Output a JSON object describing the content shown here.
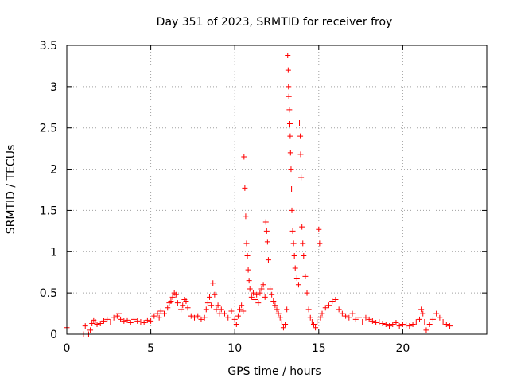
{
  "chart_data": {
    "type": "scatter",
    "title": "Day 351 of 2023, SRMTID for receiver froy",
    "xlabel": "GPS time / hours",
    "ylabel": "SRMTID / TECUs",
    "xlim": [
      0,
      25
    ],
    "ylim": [
      0,
      3.5
    ],
    "x_ticks": [
      0,
      5,
      10,
      15,
      20
    ],
    "x_tick_labels": [
      "0",
      "5",
      "10",
      "15",
      "20"
    ],
    "y_ticks": [
      0,
      0.5,
      1,
      1.5,
      2,
      2.5,
      3,
      3.5
    ],
    "y_tick_labels": [
      "0",
      "0.5",
      "1",
      "1.5",
      "2",
      "2.5",
      "3",
      "3.5"
    ],
    "grid": true,
    "marker": "+",
    "color": "#ff0000",
    "series": [
      {
        "name": "SRMTID",
        "points": [
          [
            0.0,
            0.08
          ],
          [
            1.0,
            0.0
          ],
          [
            1.1,
            0.1
          ],
          [
            1.3,
            0.0
          ],
          [
            1.4,
            0.05
          ],
          [
            1.5,
            0.13
          ],
          [
            1.6,
            0.17
          ],
          [
            1.7,
            0.15
          ],
          [
            1.8,
            0.12
          ],
          [
            2.0,
            0.13
          ],
          [
            2.2,
            0.16
          ],
          [
            2.4,
            0.18
          ],
          [
            2.6,
            0.15
          ],
          [
            2.8,
            0.2
          ],
          [
            3.0,
            0.22
          ],
          [
            3.1,
            0.25
          ],
          [
            3.2,
            0.18
          ],
          [
            3.4,
            0.16
          ],
          [
            3.6,
            0.17
          ],
          [
            3.8,
            0.14
          ],
          [
            4.0,
            0.18
          ],
          [
            4.2,
            0.16
          ],
          [
            4.4,
            0.15
          ],
          [
            4.6,
            0.14
          ],
          [
            4.8,
            0.17
          ],
          [
            5.0,
            0.16
          ],
          [
            5.2,
            0.22
          ],
          [
            5.4,
            0.25
          ],
          [
            5.5,
            0.2
          ],
          [
            5.6,
            0.28
          ],
          [
            5.8,
            0.25
          ],
          [
            6.0,
            0.32
          ],
          [
            6.1,
            0.38
          ],
          [
            6.2,
            0.4
          ],
          [
            6.3,
            0.45
          ],
          [
            6.4,
            0.5
          ],
          [
            6.5,
            0.48
          ],
          [
            6.6,
            0.38
          ],
          [
            6.8,
            0.3
          ],
          [
            6.9,
            0.35
          ],
          [
            7.0,
            0.42
          ],
          [
            7.1,
            0.4
          ],
          [
            7.2,
            0.32
          ],
          [
            7.4,
            0.22
          ],
          [
            7.6,
            0.2
          ],
          [
            7.8,
            0.22
          ],
          [
            8.0,
            0.18
          ],
          [
            8.2,
            0.2
          ],
          [
            8.3,
            0.3
          ],
          [
            8.4,
            0.38
          ],
          [
            8.5,
            0.45
          ],
          [
            8.6,
            0.35
          ],
          [
            8.7,
            0.62
          ],
          [
            8.8,
            0.48
          ],
          [
            8.9,
            0.3
          ],
          [
            9.0,
            0.35
          ],
          [
            9.1,
            0.25
          ],
          [
            9.2,
            0.3
          ],
          [
            9.4,
            0.25
          ],
          [
            9.6,
            0.2
          ],
          [
            9.8,
            0.28
          ],
          [
            10.0,
            0.18
          ],
          [
            10.1,
            0.12
          ],
          [
            10.2,
            0.22
          ],
          [
            10.3,
            0.3
          ],
          [
            10.4,
            0.35
          ],
          [
            10.5,
            0.28
          ],
          [
            10.55,
            2.15
          ],
          [
            10.6,
            1.77
          ],
          [
            10.65,
            1.43
          ],
          [
            10.7,
            1.1
          ],
          [
            10.75,
            0.95
          ],
          [
            10.8,
            0.78
          ],
          [
            10.85,
            0.65
          ],
          [
            10.9,
            0.55
          ],
          [
            11.0,
            0.45
          ],
          [
            11.1,
            0.5
          ],
          [
            11.2,
            0.42
          ],
          [
            11.3,
            0.48
          ],
          [
            11.4,
            0.38
          ],
          [
            11.5,
            0.5
          ],
          [
            11.6,
            0.55
          ],
          [
            11.7,
            0.6
          ],
          [
            11.8,
            0.45
          ],
          [
            11.85,
            1.36
          ],
          [
            11.9,
            1.25
          ],
          [
            11.95,
            1.12
          ],
          [
            12.0,
            0.9
          ],
          [
            12.1,
            0.55
          ],
          [
            12.2,
            0.48
          ],
          [
            12.3,
            0.4
          ],
          [
            12.4,
            0.35
          ],
          [
            12.5,
            0.3
          ],
          [
            12.6,
            0.25
          ],
          [
            12.7,
            0.2
          ],
          [
            12.8,
            0.15
          ],
          [
            12.9,
            0.08
          ],
          [
            13.0,
            0.12
          ],
          [
            13.1,
            0.3
          ],
          [
            13.15,
            3.38
          ],
          [
            13.18,
            3.2
          ],
          [
            13.2,
            3.0
          ],
          [
            13.22,
            2.88
          ],
          [
            13.25,
            2.72
          ],
          [
            13.28,
            2.55
          ],
          [
            13.3,
            2.4
          ],
          [
            13.32,
            2.2
          ],
          [
            13.35,
            2.0
          ],
          [
            13.38,
            1.76
          ],
          [
            13.4,
            1.5
          ],
          [
            13.45,
            1.25
          ],
          [
            13.5,
            1.1
          ],
          [
            13.55,
            0.95
          ],
          [
            13.6,
            0.8
          ],
          [
            13.7,
            0.68
          ],
          [
            13.8,
            0.6
          ],
          [
            13.85,
            2.56
          ],
          [
            13.9,
            2.4
          ],
          [
            13.92,
            2.18
          ],
          [
            13.95,
            1.9
          ],
          [
            14.0,
            1.3
          ],
          [
            14.05,
            1.1
          ],
          [
            14.1,
            0.95
          ],
          [
            14.2,
            0.7
          ],
          [
            14.3,
            0.5
          ],
          [
            14.4,
            0.3
          ],
          [
            14.5,
            0.2
          ],
          [
            14.6,
            0.15
          ],
          [
            14.7,
            0.12
          ],
          [
            14.8,
            0.08
          ],
          [
            14.9,
            0.15
          ],
          [
            15.0,
            1.27
          ],
          [
            15.05,
            1.1
          ],
          [
            15.1,
            0.2
          ],
          [
            15.2,
            0.25
          ],
          [
            15.4,
            0.32
          ],
          [
            15.6,
            0.35
          ],
          [
            15.8,
            0.4
          ],
          [
            16.0,
            0.42
          ],
          [
            16.2,
            0.3
          ],
          [
            16.4,
            0.25
          ],
          [
            16.6,
            0.22
          ],
          [
            16.8,
            0.2
          ],
          [
            17.0,
            0.25
          ],
          [
            17.2,
            0.18
          ],
          [
            17.4,
            0.2
          ],
          [
            17.6,
            0.15
          ],
          [
            17.8,
            0.2
          ],
          [
            18.0,
            0.18
          ],
          [
            18.2,
            0.16
          ],
          [
            18.4,
            0.14
          ],
          [
            18.6,
            0.15
          ],
          [
            18.8,
            0.13
          ],
          [
            19.0,
            0.12
          ],
          [
            19.2,
            0.1
          ],
          [
            19.4,
            0.12
          ],
          [
            19.6,
            0.14
          ],
          [
            19.8,
            0.1
          ],
          [
            20.0,
            0.12
          ],
          [
            20.2,
            0.11
          ],
          [
            20.4,
            0.1
          ],
          [
            20.6,
            0.12
          ],
          [
            20.8,
            0.15
          ],
          [
            21.0,
            0.18
          ],
          [
            21.1,
            0.3
          ],
          [
            21.2,
            0.25
          ],
          [
            21.3,
            0.15
          ],
          [
            21.4,
            0.05
          ],
          [
            21.6,
            0.12
          ],
          [
            21.8,
            0.18
          ],
          [
            22.0,
            0.25
          ],
          [
            22.2,
            0.2
          ],
          [
            22.4,
            0.15
          ],
          [
            22.6,
            0.12
          ],
          [
            22.8,
            0.1
          ]
        ]
      }
    ]
  }
}
